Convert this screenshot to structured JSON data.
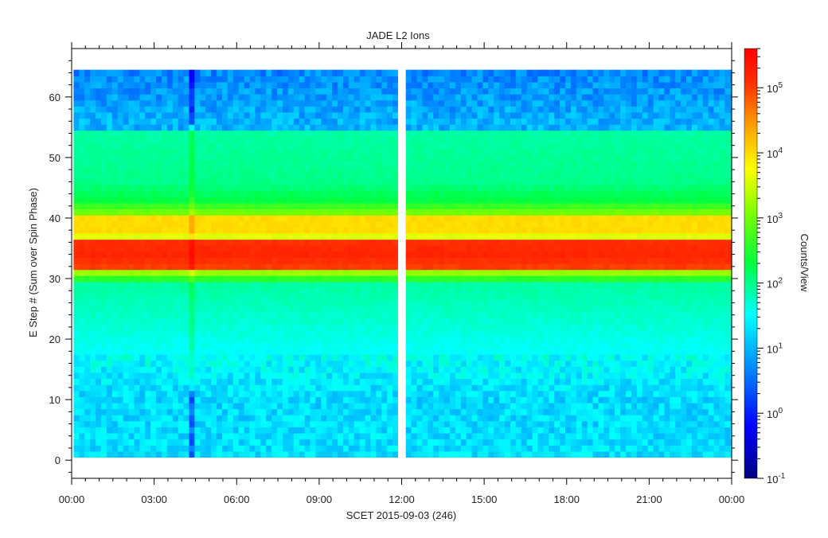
{
  "chart_data": {
    "type": "heatmap",
    "title": "JADE L2 Ions",
    "xlabel": "SCET 2015-09-03 (246)",
    "ylabel": "E Step # (Sum over Spin Phase)",
    "colorbar_label": "Counts/View",
    "colorscale": "log",
    "colorbar_range": [
      0.1,
      400000
    ],
    "colormap": "rainbow (dark blue → blue → cyan → green → yellow → orange → red)",
    "xlim_hours": [
      0,
      24
    ],
    "ylim": [
      -3,
      68
    ],
    "x_tick_labels": [
      "00:00",
      "03:00",
      "06:00",
      "09:00",
      "12:00",
      "15:00",
      "18:00",
      "21:00",
      "00:00"
    ],
    "y_tick_labels": [
      "0",
      "10",
      "20",
      "30",
      "40",
      "50",
      "60"
    ],
    "y_tick_values": [
      0,
      10,
      20,
      30,
      40,
      50,
      60
    ],
    "colorbar_tick_labels": [
      "10^-1",
      "10^0",
      "10^1",
      "10^2",
      "10^3",
      "10^4",
      "10^5"
    ],
    "data_coverage": {
      "segment_1_hours": [
        0.07,
        11.85
      ],
      "segment_2_hours": [
        12.15,
        24.0
      ],
      "e_step_range": [
        1,
        64
      ]
    },
    "energy_profile_log10_counts": [
      {
        "e_step": 1,
        "value": 1.3
      },
      {
        "e_step": 10,
        "value": 1.25
      },
      {
        "e_step": 20,
        "value": 1.6
      },
      {
        "e_step": 29,
        "value": 1.9
      },
      {
        "e_step": 31,
        "value": 3.2
      },
      {
        "e_step": 32,
        "value": 5.0
      },
      {
        "e_step": 34,
        "value": 5.2
      },
      {
        "e_step": 36,
        "value": 5.1
      },
      {
        "e_step": 37,
        "value": 3.6
      },
      {
        "e_step": 38,
        "value": 4.0
      },
      {
        "e_step": 40,
        "value": 4.0
      },
      {
        "e_step": 41,
        "value": 3.0
      },
      {
        "e_step": 43,
        "value": 2.3
      },
      {
        "e_step": 46,
        "value": 2.0
      },
      {
        "e_step": 54,
        "value": 1.9
      },
      {
        "e_step": 55,
        "value": 1.0
      },
      {
        "e_step": 64,
        "value": 0.7
      }
    ],
    "features": [
      {
        "time_hours": 4.4,
        "description": "narrow vertical stripe of enhanced counts / data dropout"
      },
      {
        "time_hours": 12.0,
        "description": "data gap"
      }
    ],
    "grid": false,
    "legend": "colorbar-right"
  }
}
